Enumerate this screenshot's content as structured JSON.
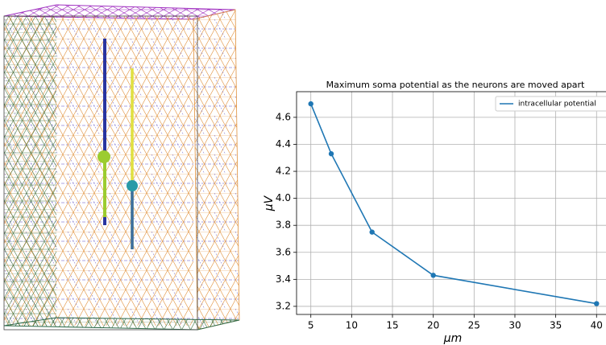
{
  "chart_data": {
    "type": "line",
    "title": "Maximum soma potential as the neurons are moved apart",
    "x_label": "μm",
    "y_label": "μV",
    "x": [
      5,
      7.5,
      12.5,
      20,
      40
    ],
    "series": [
      {
        "name": "intracellular potential",
        "color": "#1f77b4",
        "values": [
          4.7,
          4.33,
          3.75,
          3.43,
          3.22
        ]
      }
    ],
    "xlim": [
      3.25,
      41.75
    ],
    "xticks": [
      5,
      10,
      15,
      20,
      25,
      30,
      35,
      40
    ],
    "ylim": [
      3.14,
      4.79
    ],
    "yticks": [
      3.2,
      3.4,
      3.6,
      3.8,
      {
        "value": 4,
        "label": "4.0"
      },
      4.2,
      4.4,
      4.6
    ],
    "grid": true,
    "legend": "upper right"
  }
}
